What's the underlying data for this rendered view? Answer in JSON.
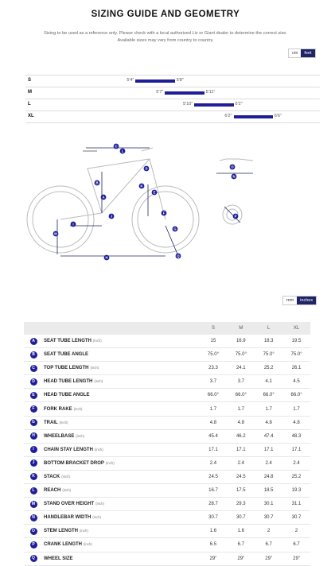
{
  "header": {
    "title": "SIZING GUIDE AND GEOMETRY",
    "subtitle_1": "Sizing to be used as a reference only. Please check with a local authorized Liv or Giant dealer to determine the correct size.",
    "subtitle_2": "Available sizes may vary from country to country."
  },
  "size_units": {
    "opt1": "cm",
    "opt2": "feet",
    "selected": "feet"
  },
  "size_chart": [
    {
      "size": "S",
      "min": "5'4\"",
      "max": "5'8\"",
      "min_in": 64,
      "max_in": 68
    },
    {
      "size": "M",
      "min": "5'7\"",
      "max": "5'11\"",
      "min_in": 67,
      "max_in": 71
    },
    {
      "size": "L",
      "min": "5'10\"",
      "max": "6'2\"",
      "min_in": 70,
      "max_in": 74
    },
    {
      "size": "XL",
      "min": "6'2\"",
      "max": "6'6\"",
      "min_in": 74,
      "max_in": 78
    }
  ],
  "diagram_letters": [
    "A",
    "B",
    "C",
    "D",
    "E",
    "F",
    "G",
    "H",
    "I",
    "J",
    "K",
    "L",
    "M",
    "N",
    "O",
    "P",
    "Q"
  ],
  "geo_units": {
    "opt1": "mm",
    "opt2": "inches",
    "selected": "inches"
  },
  "geometry": {
    "headers": [
      "S",
      "M",
      "L",
      "XL"
    ],
    "unit": "(inch)",
    "rows": [
      {
        "key": "A",
        "label": "SEAT TUBE LENGTH",
        "unit": "(inch)",
        "vals": [
          "15",
          "16.9",
          "18.3",
          "19.5"
        ]
      },
      {
        "key": "B",
        "label": "SEAT TUBE ANGLE",
        "unit": "",
        "vals": [
          "75.0°",
          "75.0°",
          "75.0°",
          "75.0°"
        ]
      },
      {
        "key": "C",
        "label": "TOP TUBE LENGTH",
        "unit": "(inch)",
        "vals": [
          "23.3",
          "24.1",
          "25.2",
          "26.1"
        ]
      },
      {
        "key": "D",
        "label": "HEAD TUBE LENGTH",
        "unit": "(inch)",
        "vals": [
          "3.7",
          "3.7",
          "4.1",
          "4.5"
        ]
      },
      {
        "key": "E",
        "label": "HEAD TUBE ANGLE",
        "unit": "",
        "vals": [
          "66.0°",
          "66.0°",
          "66.0°",
          "66.0°"
        ]
      },
      {
        "key": "F",
        "label": "FORK RAKE",
        "unit": "(inch)",
        "vals": [
          "1.7",
          "1.7",
          "1.7",
          "1.7"
        ]
      },
      {
        "key": "G",
        "label": "TRAIL",
        "unit": "(inch)",
        "vals": [
          "4.8",
          "4.8",
          "4.8",
          "4.8"
        ]
      },
      {
        "key": "H",
        "label": "WHEELBASE",
        "unit": "(inch)",
        "vals": [
          "45.4",
          "46.2",
          "47.4",
          "48.3"
        ]
      },
      {
        "key": "I",
        "label": "CHAIN STAY LENGTH",
        "unit": "(inch)",
        "vals": [
          "17.1",
          "17.1",
          "17.1",
          "17.1"
        ]
      },
      {
        "key": "J",
        "label": "BOTTOM BRACKET DROP",
        "unit": "(inch)",
        "vals": [
          "2.4",
          "2.4",
          "2.4",
          "2.4"
        ]
      },
      {
        "key": "K",
        "label": "STACK",
        "unit": "(inch)",
        "vals": [
          "24.5",
          "24.5",
          "24.8",
          "25.2"
        ]
      },
      {
        "key": "L",
        "label": "REACH",
        "unit": "(inch)",
        "vals": [
          "16.7",
          "17.5",
          "18.5",
          "19.3"
        ]
      },
      {
        "key": "M",
        "label": "STAND OVER HEIGHT",
        "unit": "(inch)",
        "vals": [
          "28.7",
          "29.3",
          "30.1",
          "31.1"
        ]
      },
      {
        "key": "N",
        "label": "HANDLEBAR WIDTH",
        "unit": "(inch)",
        "vals": [
          "30.7",
          "30.7",
          "30.7",
          "30.7"
        ]
      },
      {
        "key": "O",
        "label": "STEM LENGTH",
        "unit": "(inch)",
        "vals": [
          "1.6",
          "1.6",
          "2",
          "2"
        ]
      },
      {
        "key": "P",
        "label": "CRANK LENGTH",
        "unit": "(inch)",
        "vals": [
          "6.5",
          "6.7",
          "6.7",
          "6.7"
        ]
      },
      {
        "key": "Q",
        "label": "WHEEL SIZE",
        "unit": "",
        "vals": [
          "29\"",
          "29\"",
          "29\"",
          "29\""
        ]
      }
    ]
  }
}
